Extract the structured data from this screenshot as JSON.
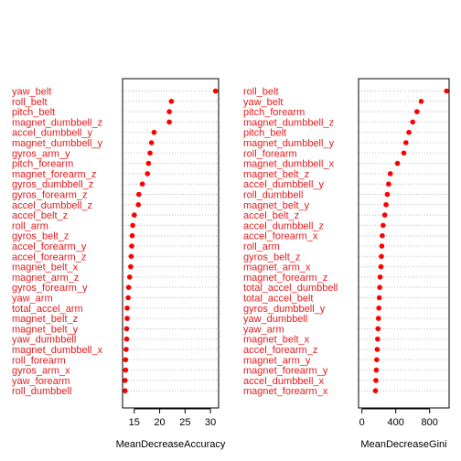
{
  "colors": {
    "point": "#ff0000",
    "label": "#e31a1c",
    "grid": "#bdbdbd",
    "axis": "#000000"
  },
  "chart_data": [
    {
      "type": "scatter",
      "style": "dotchart",
      "xlabel": "MeanDecreaseAccuracy",
      "xlim": [
        12.7,
        31.6
      ],
      "xticks": [
        15,
        20,
        25,
        30
      ],
      "grid": "dotted horizontal",
      "categories": [
        "yaw_belt",
        "roll_belt",
        "pitch_belt",
        "magnet_dumbbell_z",
        "accel_dumbbell_y",
        "magnet_dumbbell_y",
        "gyros_arm_y",
        "pitch_forearm",
        "magnet_forearm_z",
        "gyros_dumbbell_z",
        "gyros_forearm_z",
        "accel_dumbbell_z",
        "accel_belt_z",
        "roll_arm",
        "gyros_belt_z",
        "accel_forearm_y",
        "accel_forearm_z",
        "magnet_belt_x",
        "magnet_arm_z",
        "gyros_forearm_y",
        "yaw_arm",
        "total_accel_arm",
        "magnet_belt_z",
        "magnet_belt_y",
        "yaw_dumbbell",
        "magnet_dumbbell_x",
        "roll_forearm",
        "gyros_arm_x",
        "yaw_forearm",
        "roll_dumbbell"
      ],
      "values": [
        31.0,
        22.3,
        21.9,
        21.9,
        18.9,
        18.4,
        18.1,
        17.8,
        17.6,
        16.6,
        15.9,
        15.8,
        15.0,
        14.7,
        14.6,
        14.5,
        14.4,
        14.3,
        14.1,
        13.9,
        13.8,
        13.6,
        13.6,
        13.5,
        13.5,
        13.4,
        13.3,
        13.3,
        13.2,
        13.2
      ]
    },
    {
      "type": "scatter",
      "style": "dotchart",
      "xlabel": "MeanDecreaseGini",
      "xlim": [
        -40,
        1030
      ],
      "xticks": [
        0,
        400,
        800
      ],
      "grid": "dotted horizontal",
      "categories": [
        "roll_belt",
        "yaw_belt",
        "pitch_forearm",
        "magnet_dumbbell_z",
        "pitch_belt",
        "magnet_dumbbell_y",
        "roll_forearm",
        "magnet_dumbbell_x",
        "magnet_belt_z",
        "accel_dumbbell_y",
        "roll_dumbbell",
        "magnet_belt_y",
        "accel_belt_z",
        "accel_dumbbell_z",
        "accel_forearm_x",
        "roll_arm",
        "gyros_belt_z",
        "magnet_arm_x",
        "magnet_forearm_z",
        "total_accel_dumbbell",
        "total_accel_belt",
        "gyros_dumbbell_y",
        "yaw_dumbbell",
        "yaw_arm",
        "magnet_belt_x",
        "accel_forearm_z",
        "magnet_arm_y",
        "magnet_forearm_y",
        "accel_dumbbell_x",
        "magnet_forearm_x"
      ],
      "values": [
        1000,
        700,
        650,
        600,
        555,
        520,
        495,
        420,
        335,
        315,
        300,
        285,
        270,
        250,
        240,
        235,
        230,
        225,
        215,
        210,
        205,
        200,
        195,
        190,
        185,
        180,
        175,
        170,
        165,
        160
      ]
    }
  ]
}
